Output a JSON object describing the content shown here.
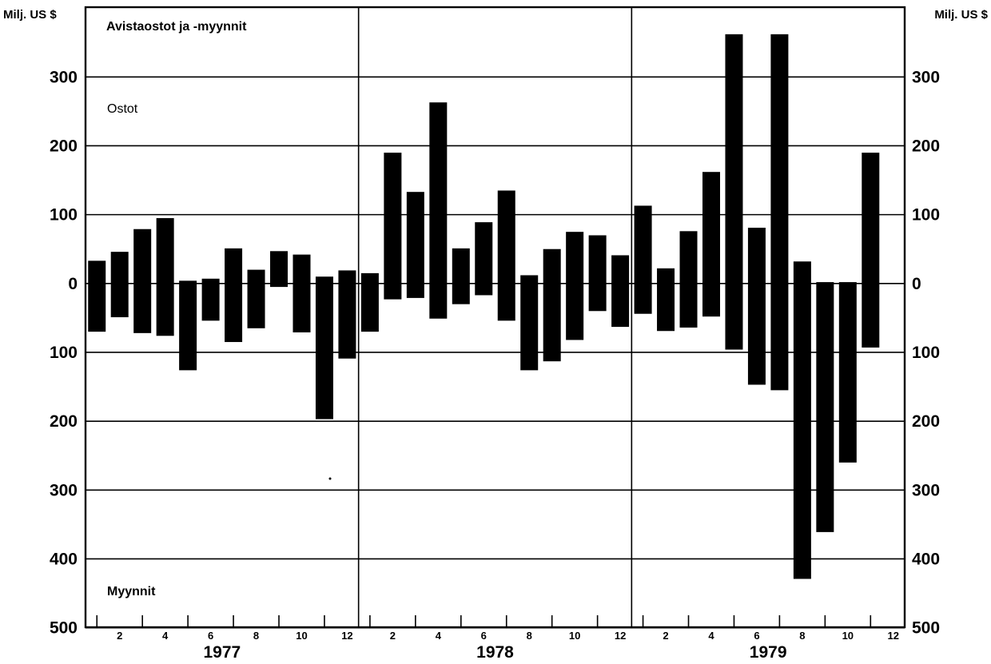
{
  "chart_data": {
    "type": "bar",
    "title": "Avistaostot ja -myynnit",
    "ylabel_left": "Milj. US $",
    "ylabel_right": "Milj. US $",
    "upper_label": "Ostot",
    "lower_label": "Myynnit",
    "yticks": [
      {
        "value": 300,
        "label": "300"
      },
      {
        "value": 200,
        "label": "200"
      },
      {
        "value": 100,
        "label": "100"
      },
      {
        "value": 0,
        "label": "0"
      },
      {
        "value": -100,
        "label": "100"
      },
      {
        "value": -200,
        "label": "200"
      },
      {
        "value": -300,
        "label": "300"
      },
      {
        "value": -400,
        "label": "400"
      },
      {
        "value": -500,
        "label": "500"
      }
    ],
    "ylim": [
      -500,
      400
    ],
    "grid": true,
    "years": [
      "1977",
      "1978",
      "1979"
    ],
    "month_labels": [
      "2",
      "4",
      "6",
      "8",
      "10",
      "12"
    ],
    "series": [
      {
        "name": "Ostot",
        "values": [
          33,
          46,
          79,
          95,
          4,
          7,
          51,
          20,
          47,
          42,
          10,
          19,
          15,
          190,
          133,
          263,
          51,
          89,
          135,
          12,
          50,
          75,
          70,
          41,
          113,
          22,
          76,
          162,
          362,
          81,
          362,
          32,
          2,
          2,
          190
        ]
      },
      {
        "name": "Myynnit",
        "values": [
          70,
          49,
          72,
          76,
          126,
          54,
          85,
          65,
          5,
          71,
          197,
          109,
          70,
          23,
          21,
          51,
          30,
          17,
          54,
          126,
          113,
          82,
          40,
          63,
          44,
          69,
          64,
          48,
          96,
          147,
          155,
          429,
          361,
          260,
          93
        ]
      }
    ]
  }
}
